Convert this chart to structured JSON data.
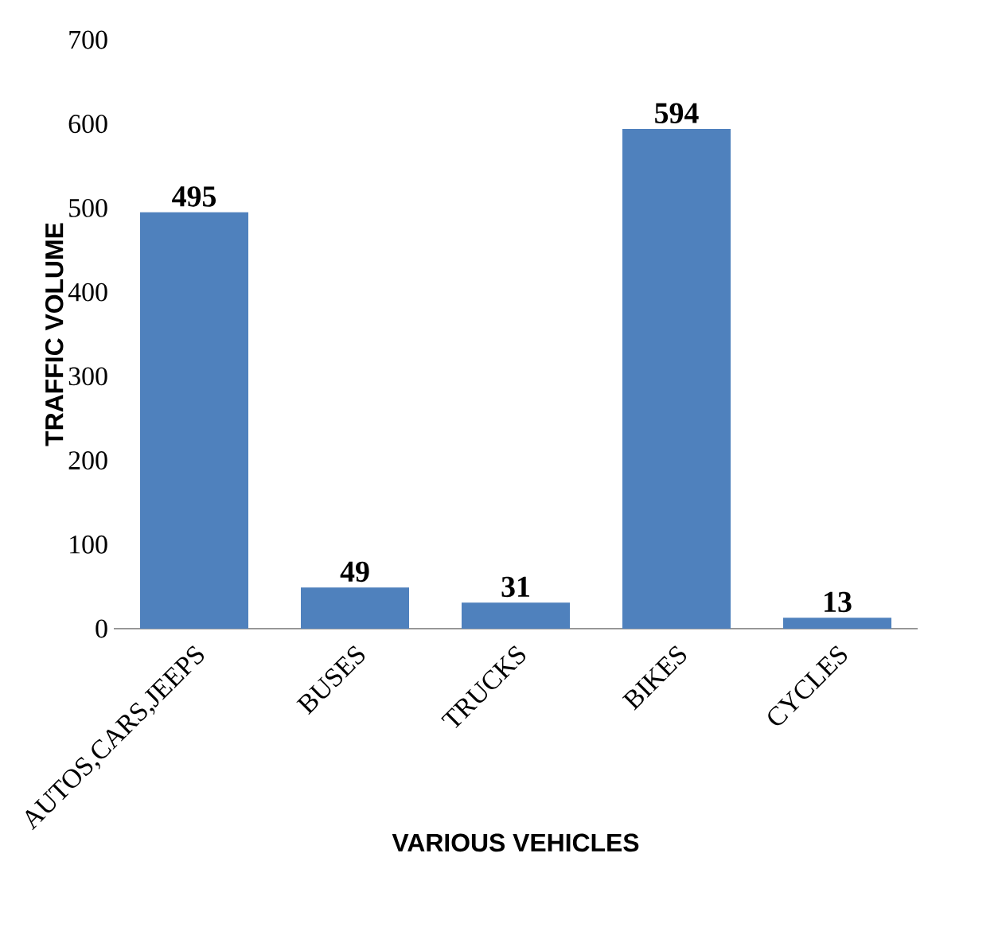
{
  "chart_data": {
    "type": "bar",
    "xlabel": "VARIOUS VEHICLES",
    "ylabel": "TRAFFIC VOLUME",
    "categories": [
      "AUTOS,CARS,JEEPS",
      "BUSES",
      "TRUCKS",
      "BIKES",
      "CYCLES"
    ],
    "values": [
      495,
      49,
      31,
      594,
      13
    ],
    "color": "#4f81bd",
    "ylim": [
      0,
      700
    ],
    "yticks": [
      0,
      100,
      200,
      300,
      400,
      500,
      600,
      700
    ],
    "data_labels": true
  }
}
